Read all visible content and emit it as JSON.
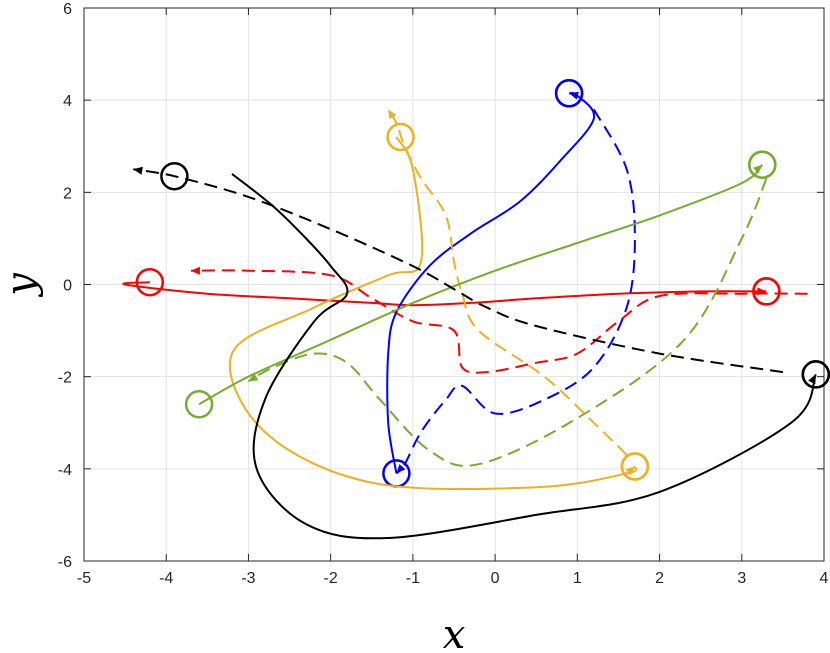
{
  "chart_data": {
    "type": "line",
    "title": "",
    "xlabel": "x",
    "ylabel": "y",
    "xlim": [
      -5,
      4
    ],
    "ylim": [
      -6,
      6
    ],
    "xticks": [
      -5,
      -4,
      -3,
      -2,
      -1,
      0,
      1,
      2,
      3,
      4
    ],
    "yticks": [
      -6,
      -4,
      -2,
      0,
      2,
      4,
      6
    ],
    "xtick_labels": [
      "-5",
      "-4",
      "-3",
      "-2",
      "-1",
      "0",
      "1",
      "2",
      "3",
      "4"
    ],
    "ytick_labels": [
      "-6",
      "-4",
      "-2",
      "0",
      "2",
      "4",
      "6"
    ],
    "grid": true,
    "legend": "none",
    "series": [
      {
        "color": "#ff0000",
        "style": "solid",
        "start_marker": [
          -4.2,
          0.05
        ],
        "end_marker": [
          3.3,
          -0.15
        ],
        "x": [
          -4.2,
          -4.5,
          -3.5,
          -2.5,
          -1.5,
          -1.0,
          -0.3,
          0.5,
          1.5,
          2.5,
          3.3
        ],
        "y": [
          0.05,
          0.0,
          -0.2,
          -0.3,
          -0.4,
          -0.45,
          -0.4,
          -0.3,
          -0.2,
          -0.15,
          -0.15
        ]
      },
      {
        "color": "#ff0000",
        "style": "dashed",
        "start_marker": [
          3.3,
          -0.15
        ],
        "x": [
          3.8,
          3.0,
          2.0,
          1.5,
          1.0,
          0.5,
          -0.1,
          -0.4,
          -0.5,
          -1.0,
          -1.5,
          -2.0,
          -3.0,
          -3.7
        ],
        "y": [
          -0.2,
          -0.2,
          -0.25,
          -0.8,
          -1.5,
          -1.7,
          -1.9,
          -1.8,
          -1.0,
          -0.8,
          -0.3,
          0.2,
          0.3,
          0.3
        ]
      },
      {
        "color": "#0000ff",
        "style": "solid",
        "start_marker": [
          -1.2,
          -4.1
        ],
        "end_marker": [
          0.9,
          4.15
        ],
        "x": [
          -1.2,
          -1.3,
          -1.3,
          -1.2,
          -0.8,
          -0.3,
          0.3,
          0.8,
          1.2,
          1.0,
          0.9
        ],
        "y": [
          -4.1,
          -3.0,
          -1.5,
          -0.6,
          0.4,
          1.1,
          1.8,
          2.7,
          3.6,
          4.1,
          4.15
        ]
      },
      {
        "color": "#0000ff",
        "style": "dashed",
        "start_marker": [
          0.9,
          4.15
        ],
        "x": [
          1.2,
          1.6,
          1.7,
          1.6,
          1.2,
          0.6,
          0.0,
          -0.4,
          -0.6,
          -0.9,
          -1.1,
          -1.2
        ],
        "y": [
          3.8,
          2.5,
          1.0,
          -0.5,
          -1.8,
          -2.5,
          -2.8,
          -2.2,
          -2.5,
          -3.2,
          -3.9,
          -4.1
        ]
      },
      {
        "color": "#edb120",
        "style": "solid",
        "start_marker": [
          -1.15,
          3.2
        ],
        "end_marker": [
          1.7,
          -3.95
        ],
        "x": [
          -1.2,
          -1.0,
          -0.9,
          -1.3,
          -2.2,
          -3.2,
          -2.8,
          -1.5,
          0.5,
          1.6,
          1.7
        ],
        "y": [
          3.2,
          2.5,
          0.5,
          0.2,
          -0.5,
          -1.5,
          -3.2,
          -4.3,
          -4.4,
          -4.1,
          -3.95
        ]
      },
      {
        "color": "#edb120",
        "style": "dashed",
        "start_marker": [
          1.7,
          -3.95
        ],
        "x": [
          1.6,
          1.2,
          0.6,
          -0.2,
          -0.4,
          -0.5,
          -0.6,
          -0.9,
          -1.1,
          -1.2,
          -1.3
        ],
        "y": [
          -3.7,
          -3.0,
          -2.0,
          -1.0,
          -0.2,
          0.5,
          1.5,
          2.3,
          3.0,
          3.5,
          3.8
        ]
      },
      {
        "color": "#77ac30",
        "style": "solid",
        "start_marker": [
          -3.6,
          -2.6
        ],
        "end_marker": [
          3.25,
          2.6
        ],
        "x": [
          -3.6,
          -3.0,
          -2.0,
          -1.0,
          0.0,
          1.0,
          2.0,
          3.0,
          3.25
        ],
        "y": [
          -2.6,
          -2.0,
          -1.2,
          -0.4,
          0.3,
          0.9,
          1.5,
          2.2,
          2.6
        ]
      },
      {
        "color": "#77ac30",
        "style": "dashed",
        "start_marker": [
          3.25,
          2.6
        ],
        "x": [
          3.3,
          3.0,
          2.3,
          1.0,
          -0.2,
          -0.8,
          -1.4,
          -1.8,
          -2.2,
          -2.7,
          -3.0
        ],
        "y": [
          2.3,
          1.0,
          -1.2,
          -2.9,
          -3.9,
          -3.6,
          -2.5,
          -1.7,
          -1.5,
          -1.8,
          -2.1
        ]
      },
      {
        "color": "#000000",
        "style": "solid",
        "start_marker": [
          3.9,
          -1.95
        ],
        "x": [
          -3.2,
          -2.7,
          -2.3,
          -2.0,
          -1.8,
          -2.2,
          -2.8,
          -2.9,
          -2.3,
          -1.3,
          0.5,
          2.0,
          3.6,
          3.9
        ],
        "y": [
          2.4,
          1.7,
          1.0,
          0.4,
          -0.2,
          -0.8,
          -2.5,
          -4.0,
          -5.2,
          -5.5,
          -5.0,
          -4.5,
          -3.0,
          -1.95
        ]
      },
      {
        "color": "#000000",
        "style": "dashed",
        "start_marker": [
          3.9,
          -1.95
        ],
        "end_marker": [
          -3.9,
          2.35
        ],
        "x": [
          3.5,
          2.0,
          0.5,
          -0.1,
          -0.5,
          -1.0,
          -2.0,
          -3.0,
          -3.9,
          -4.4
        ],
        "y": [
          -1.9,
          -1.5,
          -0.9,
          -0.5,
          -0.1,
          0.4,
          1.2,
          1.9,
          2.35,
          2.5
        ]
      }
    ]
  }
}
